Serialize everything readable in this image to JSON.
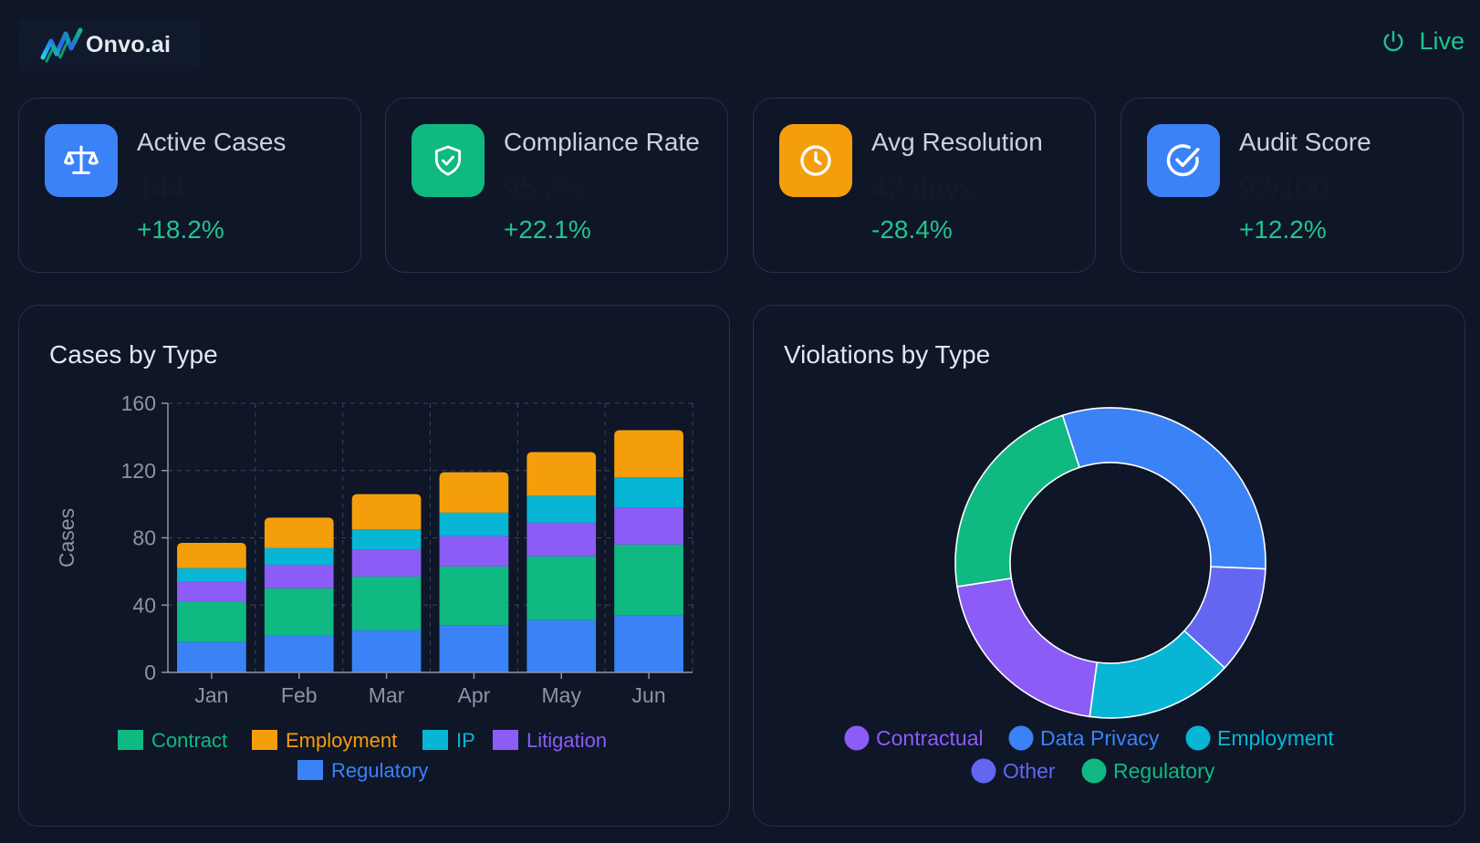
{
  "header": {
    "brand": "Onvo.ai",
    "status": "Live"
  },
  "kpis": [
    {
      "label": "Active Cases",
      "value": "144",
      "change": "+18.2%",
      "icon": "scale-icon",
      "color": "#3b82f6"
    },
    {
      "label": "Compliance Rate",
      "value": "95.2%",
      "change": "+22.1%",
      "icon": "shield-check-icon",
      "color": "#10b981"
    },
    {
      "label": "Avg Resolution",
      "value": "42 days",
      "change": "-28.4%",
      "icon": "clock-icon",
      "color": "#f59e0b"
    },
    {
      "label": "Audit Score",
      "value": "92/100",
      "change": "+12.2%",
      "icon": "check-circle-icon",
      "color": "#3b82f6"
    }
  ],
  "colors": {
    "blue": "#3b82f6",
    "green": "#10b981",
    "cyan": "#06b6d4",
    "purple": "#8b5cf6",
    "amber": "#f59e0b",
    "indigo": "#6366f1",
    "live": "#22c38e"
  },
  "chart_data": [
    {
      "type": "bar",
      "stacked": true,
      "title": "Cases by Type",
      "xlabel": "",
      "ylabel": "Cases",
      "ylim": [
        0,
        160
      ],
      "yticks": [
        0,
        40,
        80,
        120,
        160
      ],
      "grid": true,
      "categories": [
        "Jan",
        "Feb",
        "Mar",
        "Apr",
        "May",
        "Jun"
      ],
      "series": [
        {
          "name": "Regulatory",
          "color": "#3b82f6",
          "values": [
            18,
            22,
            25,
            28,
            31,
            34
          ]
        },
        {
          "name": "Contract",
          "color": "#10b981",
          "values": [
            24,
            28,
            32,
            35,
            38,
            42
          ]
        },
        {
          "name": "Litigation",
          "color": "#8b5cf6",
          "values": [
            12,
            14,
            16,
            18,
            20,
            22
          ]
        },
        {
          "name": "IP",
          "color": "#06b6d4",
          "values": [
            8,
            10,
            12,
            14,
            16,
            18
          ]
        },
        {
          "name": "Employment",
          "color": "#f59e0b",
          "values": [
            15,
            18,
            21,
            24,
            26,
            28
          ]
        }
      ],
      "legend": [
        "Contract",
        "Employment",
        "IP",
        "Litigation",
        "Regulatory"
      ]
    },
    {
      "type": "pie",
      "donut": true,
      "title": "Violations by Type",
      "slices": [
        {
          "name": "Data Privacy",
          "color": "#3b82f6",
          "value": 30
        },
        {
          "name": "Other",
          "color": "#6366f1",
          "value": 11
        },
        {
          "name": "Employment",
          "color": "#06b6d4",
          "value": 15
        },
        {
          "name": "Contractual",
          "color": "#8b5cf6",
          "value": 20
        },
        {
          "name": "Regulatory",
          "color": "#10b981",
          "value": 22
        }
      ],
      "legend": [
        "Contractual",
        "Data Privacy",
        "Employment",
        "Other",
        "Regulatory"
      ]
    }
  ]
}
